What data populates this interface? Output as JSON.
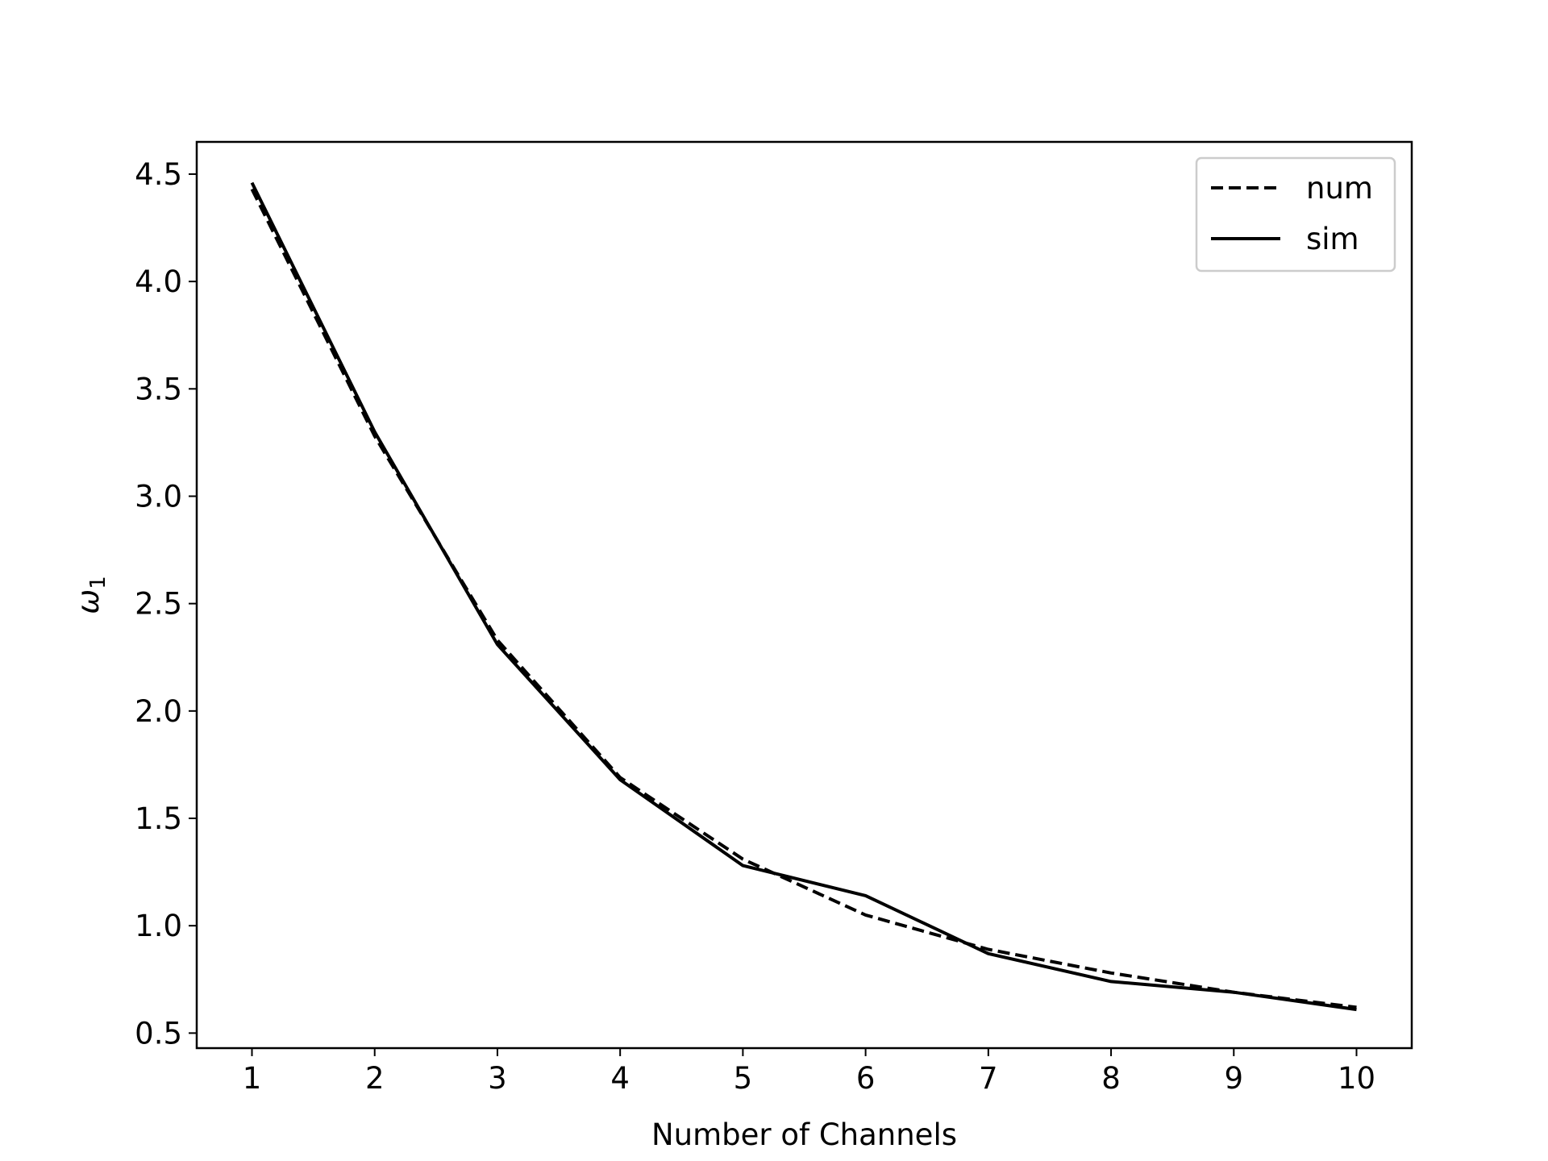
{
  "chart_data": {
    "type": "line",
    "title": "",
    "xlabel": "Number of Channels",
    "ylabel": "ω",
    "ylabel_subscript": "1",
    "x": [
      1,
      2,
      3,
      4,
      5,
      6,
      7,
      8,
      9,
      10
    ],
    "xticks": [
      "1",
      "2",
      "3",
      "4",
      "5",
      "6",
      "7",
      "8",
      "9",
      "10"
    ],
    "yticks": [
      "0.5",
      "1.0",
      "1.5",
      "2.0",
      "2.5",
      "3.0",
      "3.5",
      "4.0",
      "4.5"
    ],
    "xlim": [
      0.55,
      10.45
    ],
    "ylim": [
      0.43,
      4.65
    ],
    "grid": false,
    "legend_position": "top-right",
    "series": [
      {
        "name": "num",
        "style": "dashed",
        "color": "#000000",
        "values": [
          4.43,
          3.28,
          2.33,
          1.69,
          1.31,
          1.05,
          0.89,
          0.78,
          0.69,
          0.62
        ]
      },
      {
        "name": "sim",
        "style": "solid",
        "color": "#000000",
        "values": [
          4.46,
          3.3,
          2.31,
          1.68,
          1.28,
          1.14,
          0.87,
          0.74,
          0.69,
          0.61
        ]
      }
    ]
  }
}
